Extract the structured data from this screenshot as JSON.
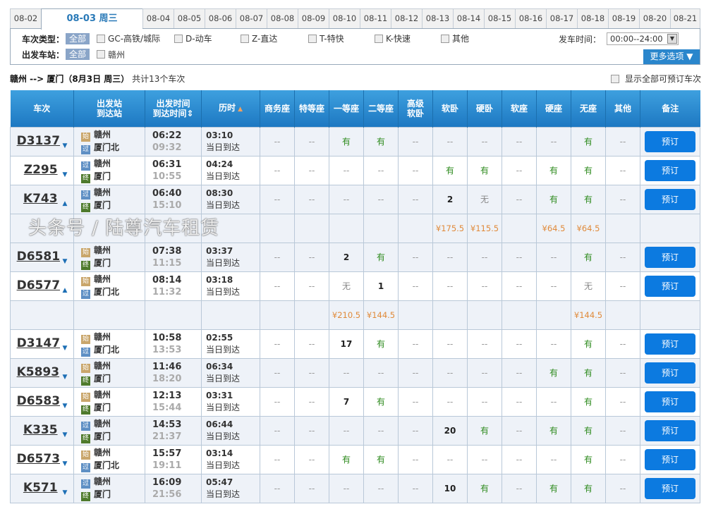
{
  "date_tabs": [
    "08-02",
    "08-03 周三",
    "08-04",
    "08-05",
    "08-06",
    "08-07",
    "08-08",
    "08-09",
    "08-10",
    "08-11",
    "08-12",
    "08-13",
    "08-14",
    "08-15",
    "08-16",
    "08-17",
    "08-18",
    "08-19",
    "08-20",
    "08-21"
  ],
  "active_tab": "08-03 周三",
  "filters": {
    "type_label": "车次类型：",
    "all_label": "全部",
    "types": [
      "GC-高铁/城际",
      "D-动车",
      "Z-直达",
      "T-特快",
      "K-快速",
      "其他"
    ],
    "station_label": "出发车站：",
    "stations": [
      "赣州"
    ],
    "time_label": "发车时间：",
    "time_value": "00:00--24:00",
    "more_label": "更多选项 ▼"
  },
  "summary": {
    "route": "赣州 --> 厦门（8月3日  周三）",
    "count_text": "共计13个车次",
    "show_all_label": "显示全部可预订车次"
  },
  "columns": [
    "车次",
    "出发站\n到达站",
    "出发时间\n到达时间",
    "历时",
    "商务座",
    "特等座",
    "一等座",
    "二等座",
    "高级\n软卧",
    "软卧",
    "硬卧",
    "软座",
    "硬座",
    "无座",
    "其他",
    "备注"
  ],
  "book_label": "预订",
  "rows": [
    {
      "train": "D3137",
      "arrow": "down",
      "from_badge": "始",
      "from": "赣州",
      "to_badge": "过",
      "to": "厦门北",
      "dep": "06:22",
      "arr": "09:32",
      "dur": "03:10",
      "arrive_note": "当日到达",
      "seats": [
        "--",
        "--",
        "有",
        "有",
        "--",
        "--",
        "--",
        "--",
        "--",
        "有",
        "--"
      ]
    },
    {
      "train": "Z295",
      "arrow": "down",
      "from_badge": "过",
      "from": "赣州",
      "to_badge": "终",
      "to": "厦门",
      "dep": "06:31",
      "arr": "10:55",
      "dur": "04:24",
      "arrive_note": "当日到达",
      "seats": [
        "--",
        "--",
        "--",
        "--",
        "--",
        "有",
        "有",
        "--",
        "有",
        "有",
        "--"
      ]
    },
    {
      "train": "K743",
      "arrow": "up",
      "from_badge": "过",
      "from": "赣州",
      "to_badge": "终",
      "to": "厦门",
      "dep": "06:40",
      "arr": "15:10",
      "dur": "08:30",
      "arrive_note": "当日到达",
      "seats": [
        "--",
        "--",
        "--",
        "--",
        "--",
        "2",
        "无",
        "--",
        "有",
        "有",
        "--"
      ],
      "prices": [
        "",
        "",
        "",
        "",
        "",
        "¥175.5",
        "¥115.5",
        "",
        "¥64.5",
        "¥64.5",
        ""
      ]
    },
    {
      "train": "D6581",
      "arrow": "down",
      "from_badge": "始",
      "from": "赣州",
      "to_badge": "终",
      "to": "厦门",
      "dep": "07:38",
      "arr": "11:15",
      "dur": "03:37",
      "arrive_note": "当日到达",
      "seats": [
        "--",
        "--",
        "2",
        "有",
        "--",
        "--",
        "--",
        "--",
        "--",
        "有",
        "--"
      ]
    },
    {
      "train": "D6577",
      "arrow": "up",
      "from_badge": "始",
      "from": "赣州",
      "to_badge": "过",
      "to": "厦门北",
      "dep": "08:14",
      "arr": "11:32",
      "dur": "03:18",
      "arrive_note": "当日到达",
      "seats": [
        "--",
        "--",
        "无",
        "1",
        "--",
        "--",
        "--",
        "--",
        "--",
        "无",
        "--"
      ],
      "prices": [
        "",
        "",
        "¥210.5",
        "¥144.5",
        "",
        "",
        "",
        "",
        "",
        "¥144.5",
        ""
      ]
    },
    {
      "train": "D3147",
      "arrow": "down",
      "from_badge": "始",
      "from": "赣州",
      "to_badge": "过",
      "to": "厦门北",
      "dep": "10:58",
      "arr": "13:53",
      "dur": "02:55",
      "arrive_note": "当日到达",
      "seats": [
        "--",
        "--",
        "17",
        "有",
        "--",
        "--",
        "--",
        "--",
        "--",
        "有",
        "--"
      ]
    },
    {
      "train": "K5893",
      "arrow": "down",
      "from_badge": "始",
      "from": "赣州",
      "to_badge": "终",
      "to": "厦门",
      "dep": "11:46",
      "arr": "18:20",
      "dur": "06:34",
      "arrive_note": "当日到达",
      "seats": [
        "--",
        "--",
        "--",
        "--",
        "--",
        "--",
        "--",
        "--",
        "有",
        "有",
        "--"
      ]
    },
    {
      "train": "D6583",
      "arrow": "down",
      "from_badge": "始",
      "from": "赣州",
      "to_badge": "终",
      "to": "厦门",
      "dep": "12:13",
      "arr": "15:44",
      "dur": "03:31",
      "arrive_note": "当日到达",
      "seats": [
        "--",
        "--",
        "7",
        "有",
        "--",
        "--",
        "--",
        "--",
        "--",
        "有",
        "--"
      ]
    },
    {
      "train": "K335",
      "arrow": "down",
      "from_badge": "过",
      "from": "赣州",
      "to_badge": "终",
      "to": "厦门",
      "dep": "14:53",
      "arr": "21:37",
      "dur": "06:44",
      "arrive_note": "当日到达",
      "seats": [
        "--",
        "--",
        "--",
        "--",
        "--",
        "20",
        "有",
        "--",
        "有",
        "有",
        "--"
      ]
    },
    {
      "train": "D6573",
      "arrow": "down",
      "from_badge": "始",
      "from": "赣州",
      "to_badge": "过",
      "to": "厦门北",
      "dep": "15:57",
      "arr": "19:11",
      "dur": "03:14",
      "arrive_note": "当日到达",
      "seats": [
        "--",
        "--",
        "有",
        "有",
        "--",
        "--",
        "--",
        "--",
        "--",
        "有",
        "--"
      ]
    },
    {
      "train": "K571",
      "arrow": "down",
      "from_badge": "过",
      "from": "赣州",
      "to_badge": "终",
      "to": "厦门",
      "dep": "16:09",
      "arr": "21:56",
      "dur": "05:47",
      "arrive_note": "当日到达",
      "seats": [
        "--",
        "--",
        "--",
        "--",
        "--",
        "10",
        "有",
        "--",
        "有",
        "有",
        "--"
      ]
    }
  ],
  "watermark": "头条号 / 陆尊汽车租赁",
  "colors": {
    "header": "#1d78c2",
    "book": "#0c7ae0",
    "available": "#2e8b1e",
    "price": "#e08a3a"
  }
}
